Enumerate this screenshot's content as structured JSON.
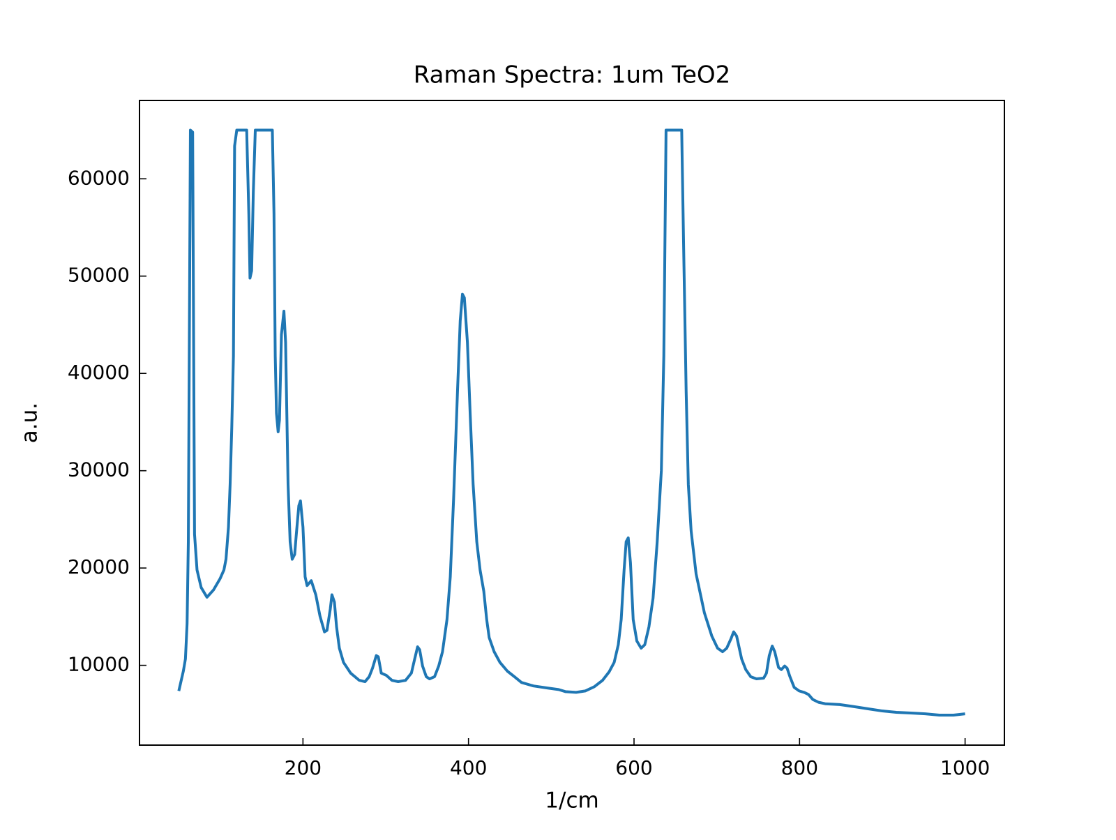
{
  "chart_data": {
    "type": "line",
    "title": "Raman Spectra: 1um TeO2",
    "x_label": "1/cm",
    "y_label": "a.u.",
    "xlim": [
      2.5,
      1047.5
    ],
    "ylim": [
      1800,
      68050
    ],
    "xticks": [
      200,
      400,
      600,
      800,
      1000
    ],
    "yticks": [
      10000,
      20000,
      30000,
      40000,
      50000,
      60000
    ],
    "grid": false,
    "x": [
      50,
      55.5,
      58,
      60,
      61.5,
      64,
      66.7,
      69,
      72,
      77,
      84,
      92,
      100,
      104.5,
      107,
      110,
      112,
      114,
      116,
      117.4,
      120,
      132,
      134.6,
      136,
      138,
      140,
      142.4,
      163,
      165,
      166.5,
      168,
      170,
      171.6,
      174,
      177,
      179,
      182,
      184.5,
      187,
      190,
      192,
      195,
      197,
      200,
      202.6,
      205,
      210,
      215.5,
      220.6,
      226,
      229,
      233,
      235,
      238,
      240.6,
      244,
      249,
      257.6,
      268,
      275,
      280,
      284,
      288.6,
      291,
      294.6,
      300.6,
      307.5,
      315,
      324,
      331,
      335,
      338.5,
      341,
      344.5,
      349,
      353,
      359,
      364,
      368.6,
      374,
      378,
      382,
      386.7,
      390,
      392.7,
      395,
      398.7,
      402,
      405.6,
      410,
      414,
      418.5,
      422,
      425,
      431,
      438,
      447,
      455.5,
      464,
      478.5,
      496,
      509,
      517.4,
      530,
      541,
      552,
      562,
      570,
      576,
      581,
      584.5,
      588,
      590.5,
      593,
      595.7,
      599,
      603.4,
      608.6,
      613,
      618,
      623,
      628,
      633,
      636,
      638.7,
      657.6,
      660,
      663,
      665.6,
      669,
      675,
      685,
      694,
      701,
      707,
      712,
      717,
      720.4,
      724,
      730,
      735,
      741,
      748,
      756.6,
      760,
      763.4,
      767,
      770,
      774.6,
      778,
      782,
      785,
      788.4,
      793.5,
      799.6,
      805.6,
      810.8,
      816,
      823,
      831,
      848.6,
      866,
      883,
      900,
      917,
      934.6,
      951.8,
      969,
      986,
      1000
    ],
    "series": [
      {
        "color": "#1f77b4",
        "values": [
          7365,
          9414,
          10660,
          14300,
          22700,
          65000,
          64800,
          23470,
          19800,
          18000,
          17000,
          17760,
          18930,
          19800,
          20900,
          24200,
          28600,
          34450,
          41800,
          63370,
          65000,
          65000,
          56400,
          49800,
          50550,
          58600,
          65000,
          65000,
          56400,
          41800,
          35900,
          34000,
          35200,
          44000,
          46400,
          43200,
          28600,
          22700,
          20900,
          21400,
          23500,
          26400,
          26900,
          24200,
          19100,
          18200,
          18700,
          17250,
          15050,
          13440,
          13590,
          15780,
          17250,
          16500,
          13950,
          11760,
          10300,
          9200,
          8460,
          8320,
          8830,
          9700,
          11000,
          10880,
          9200,
          8975,
          8460,
          8320,
          8460,
          9200,
          10660,
          11900,
          11600,
          9930,
          8830,
          8610,
          8830,
          9930,
          11400,
          14700,
          19100,
          27100,
          38100,
          45400,
          48140,
          47770,
          43200,
          35900,
          28600,
          22700,
          19800,
          17600,
          14700,
          12850,
          11400,
          10300,
          9400,
          8830,
          8240,
          7880,
          7660,
          7510,
          7290,
          7220,
          7365,
          7800,
          8460,
          9340,
          10300,
          12120,
          14700,
          19800,
          22700,
          23100,
          20540,
          14700,
          12500,
          11760,
          12120,
          13950,
          16900,
          22700,
          30000,
          41800,
          65000,
          65000,
          52750,
          38100,
          28600,
          23800,
          19400,
          15400,
          13000,
          11760,
          11400,
          11760,
          12700,
          13440,
          13000,
          10660,
          9560,
          8830,
          8610,
          8680,
          9200,
          11000,
          11980,
          11400,
          9780,
          9560,
          9930,
          9700,
          8830,
          7730,
          7365,
          7220,
          7000,
          6490,
          6200,
          6050,
          5970,
          5750,
          5530,
          5310,
          5170,
          5100,
          5020,
          4880,
          4880,
          5020
        ]
      }
    ]
  }
}
